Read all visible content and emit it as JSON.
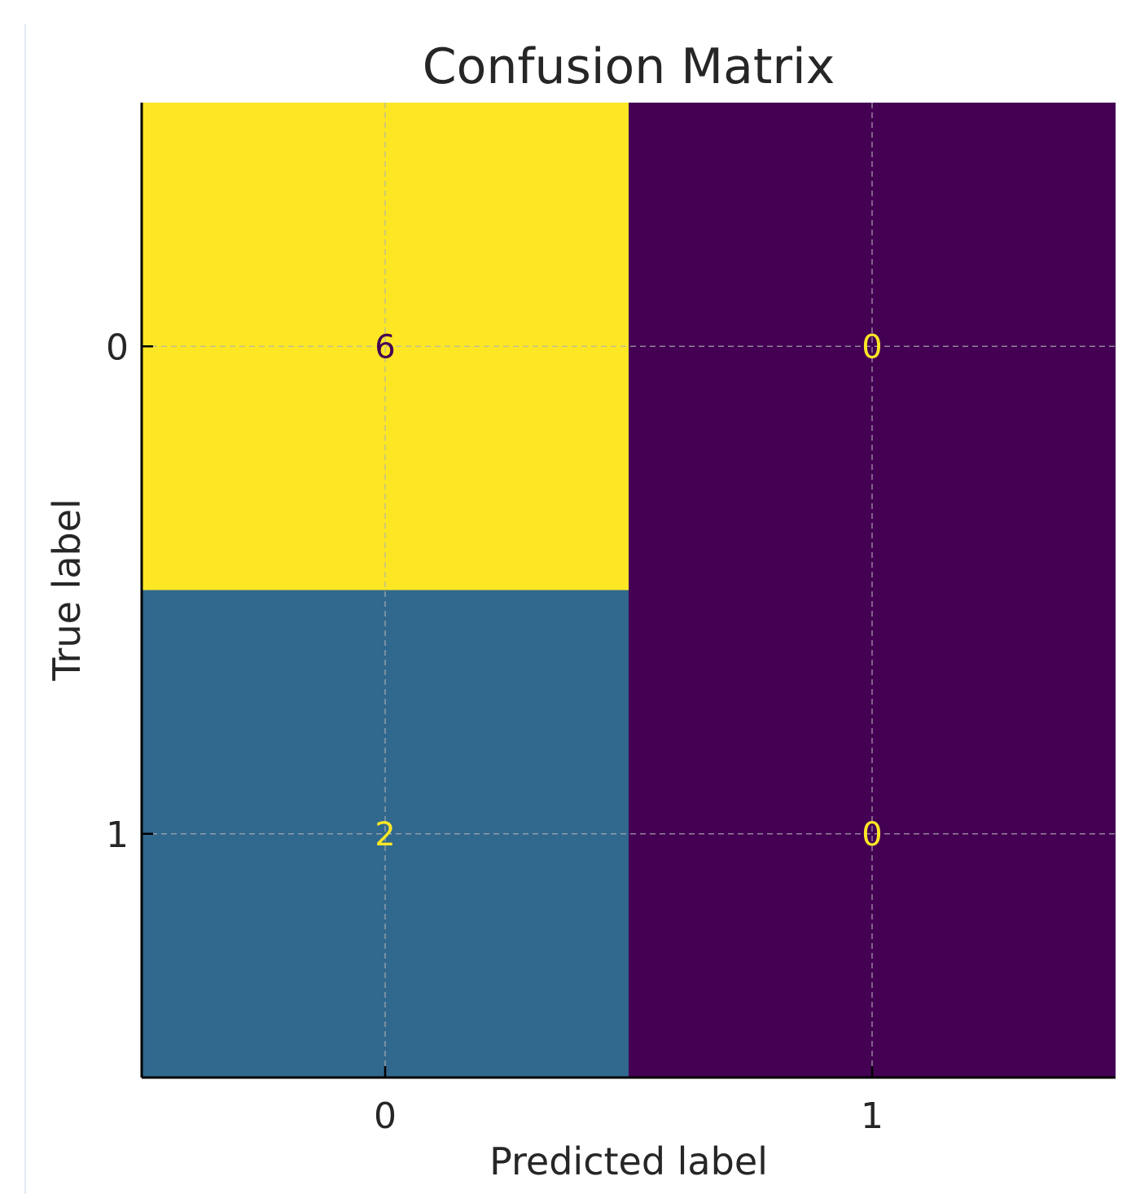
{
  "chart_data": {
    "type": "heatmap",
    "title": "Confusion Matrix",
    "xlabel": "Predicted label",
    "ylabel": "True label",
    "x_categories": [
      "0",
      "1"
    ],
    "y_categories": [
      "0",
      "1"
    ],
    "values": [
      [
        6,
        0
      ],
      [
        2,
        0
      ]
    ],
    "grid": true,
    "colormap": "viridis",
    "colors": {
      "cell_0_0": "#fde725",
      "cell_0_1": "#440154",
      "cell_1_0": "#31688e",
      "cell_1_1": "#440154",
      "text_on_light": "#440154",
      "text_on_dark": "#fde725"
    }
  }
}
